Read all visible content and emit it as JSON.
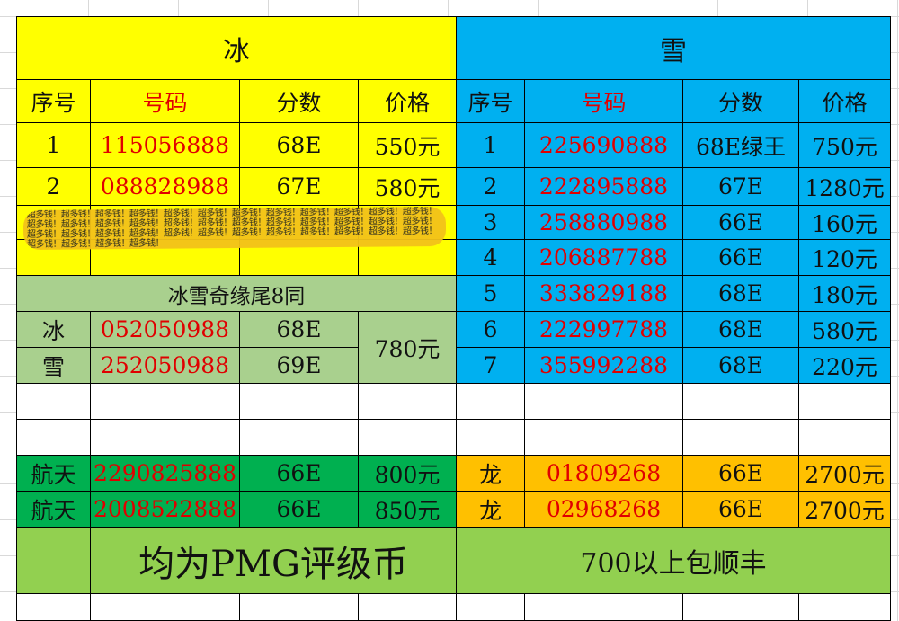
{
  "left": {
    "title": "冰",
    "headers": [
      "序号",
      "号码",
      "分数",
      "价格"
    ],
    "rows": [
      {
        "no": "1",
        "number": "115056888",
        "grade": "68E",
        "price": "550元"
      },
      {
        "no": "2",
        "number": "088828988",
        "grade": "67E",
        "price": "580元"
      }
    ],
    "combo": {
      "title": "冰雪奇缘尾8同",
      "rows": [
        {
          "label": "冰",
          "number": "052050988",
          "grade": "68E"
        },
        {
          "label": "雪",
          "number": "252050988",
          "grade": "69E"
        }
      ],
      "price": "780元"
    },
    "hangtian": [
      {
        "label": "航天",
        "number": "2290825888",
        "grade": "66E",
        "price": "800元"
      },
      {
        "label": "航天",
        "number": "2008522888",
        "grade": "66E",
        "price": "850元"
      }
    ]
  },
  "right": {
    "title": "雪",
    "headers": [
      "序号",
      "号码",
      "分数",
      "价格"
    ],
    "rows": [
      {
        "no": "1",
        "number": "225690888",
        "grade": "68E绿王",
        "price": "750元"
      },
      {
        "no": "2",
        "number": "222895888",
        "grade": "67E",
        "price": "1280元"
      },
      {
        "no": "3",
        "number": "258880988",
        "grade": "66E",
        "price": "160元"
      },
      {
        "no": "4",
        "number": "206887788",
        "grade": "66E",
        "price": "120元"
      },
      {
        "no": "5",
        "number": "333829188",
        "grade": "68E",
        "price": "180元"
      },
      {
        "no": "6",
        "number": "222997788",
        "grade": "68E",
        "price": "580元"
      },
      {
        "no": "7",
        "number": "355992288",
        "grade": "68E",
        "price": "220元"
      }
    ],
    "long": [
      {
        "label": "龙",
        "number": "01809268",
        "grade": "66E",
        "price": "2700元"
      },
      {
        "label": "龙",
        "number": "02968268",
        "grade": "66E",
        "price": "2700元"
      }
    ]
  },
  "footer": {
    "note_left": "均为PMG评级币",
    "note_right": "700以上包顺丰"
  },
  "watermark": "超多钱！超多钱！超多钱！超多钱！超多钱！超多钱！超多钱！超多钱！超多钱！超多钱！超多钱！超多钱！超多钱！超多钱！超多钱！超多钱！超多钱！超多钱！超多钱！超多钱！超多钱！超多钱！超多钱！超多钱！超多钱！超多钱！超多钱！超多钱！超多钱！超多钱！超多钱！超多钱！超多钱！超多钱！超多钱！超多钱！超多钱！超多钱！超多钱！超多钱！"
}
